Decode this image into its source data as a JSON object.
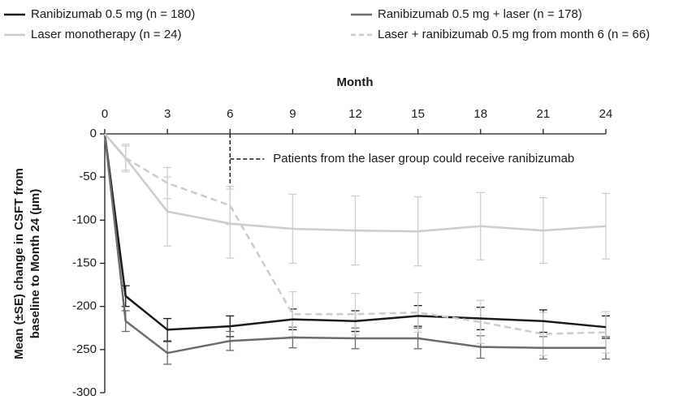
{
  "chart_data": {
    "type": "line",
    "x_label": "Month",
    "y_label": [
      "Mean (±SE) change in CSFT from",
      "baseline to Month 24 (µm)"
    ],
    "x": [
      0,
      1,
      3,
      6,
      9,
      12,
      15,
      18,
      21,
      24
    ],
    "xlim": [
      0,
      24
    ],
    "xticks": [
      0,
      3,
      6,
      9,
      12,
      15,
      18,
      21,
      24
    ],
    "ylim": [
      -300,
      0
    ],
    "yticks": [
      0,
      -50,
      -100,
      -150,
      -200,
      -250,
      -300
    ],
    "series": [
      {
        "name": "Ranibizumab 0.5 mg (n = 180)",
        "color": "#1a1a1a",
        "dashed": false,
        "values": [
          0,
          -188,
          -227,
          -223,
          -215,
          -217,
          -211,
          -214,
          -217,
          -224
        ],
        "errors": [
          0,
          12,
          13,
          12,
          12,
          12,
          12,
          13,
          13,
          13
        ]
      },
      {
        "name": "Ranibizumab 0.5 mg + laser (n = 178)",
        "color": "#6b6b6b",
        "dashed": false,
        "values": [
          0,
          -217,
          -254,
          -240,
          -236,
          -237,
          -237,
          -247,
          -248,
          -248
        ],
        "errors": [
          0,
          12,
          13,
          11,
          12,
          12,
          12,
          13,
          13,
          13
        ]
      },
      {
        "name": "Laser monotherapy (n = 24)",
        "color": "#cccccc",
        "dashed": false,
        "values": [
          0,
          -28,
          -90,
          -104,
          -110,
          -112,
          -113,
          -107,
          -112,
          -107
        ],
        "errors": [
          0,
          16,
          40,
          40,
          40,
          40,
          40,
          39,
          38,
          38
        ]
      },
      {
        "name": "Laser + ranibizumab 0.5 mg from month 6 (n = 66)",
        "color": "#cccccc",
        "dashed": true,
        "values": [
          0,
          -28,
          -57,
          -83,
          -209,
          -209,
          -207,
          -218,
          -232,
          -230
        ],
        "errors": [
          0,
          14,
          18,
          22,
          26,
          24,
          23,
          25,
          25,
          24
        ]
      }
    ],
    "annotations": [
      {
        "text": "Patients from the laser group could receive ranibizumab",
        "x": 6
      }
    ]
  }
}
